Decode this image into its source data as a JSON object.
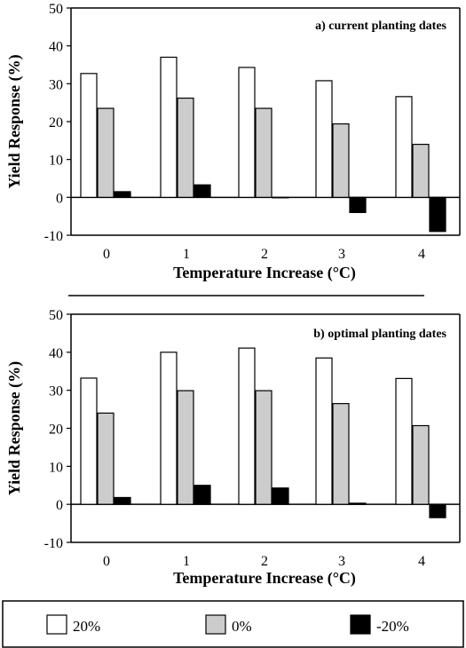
{
  "chart_data": [
    {
      "type": "bar",
      "title": "",
      "annotation": "a) current planting dates",
      "xlabel": "Temperature Increase (°C)",
      "ylabel": "Yield Response (%)",
      "categories": [
        "0",
        "1",
        "2",
        "3",
        "4"
      ],
      "ylim": [
        -10,
        50
      ],
      "yticks": [
        "50",
        "40",
        "30",
        "20",
        "10",
        "0",
        "-10"
      ],
      "grid": false,
      "series": [
        {
          "name": "20%",
          "color": "#ffffff",
          "values": [
            32.7,
            37.0,
            34.3,
            30.8,
            26.6
          ]
        },
        {
          "name": "0%",
          "color": "#cccccc",
          "values": [
            23.5,
            26.2,
            23.5,
            19.4,
            14.0
          ]
        },
        {
          "name": "-20%",
          "color": "#000000",
          "values": [
            1.5,
            3.3,
            0.0,
            -4.0,
            -9.0
          ]
        }
      ]
    },
    {
      "type": "bar",
      "title": "",
      "annotation": "b) optimal planting dates",
      "xlabel": "Temperature Increase (°C)",
      "ylabel": "Yield Response (%)",
      "categories": [
        "0",
        "1",
        "2",
        "3",
        "4"
      ],
      "ylim": [
        -10,
        50
      ],
      "yticks": [
        "50",
        "40",
        "30",
        "20",
        "10",
        "0",
        "-10"
      ],
      "grid": false,
      "series": [
        {
          "name": "20%",
          "color": "#ffffff",
          "values": [
            33.2,
            40.0,
            41.1,
            38.5,
            33.1
          ]
        },
        {
          "name": "0%",
          "color": "#cccccc",
          "values": [
            24.0,
            29.9,
            29.9,
            26.5,
            20.7
          ]
        },
        {
          "name": "-20%",
          "color": "#000000",
          "values": [
            1.8,
            5.0,
            4.3,
            0.3,
            -3.5
          ]
        }
      ]
    }
  ],
  "legend": {
    "placement": "bottom",
    "items": [
      {
        "label": "20%",
        "color": "#ffffff"
      },
      {
        "label": "0%",
        "color": "#cccccc"
      },
      {
        "label": "-20%",
        "color": "#000000"
      }
    ]
  }
}
